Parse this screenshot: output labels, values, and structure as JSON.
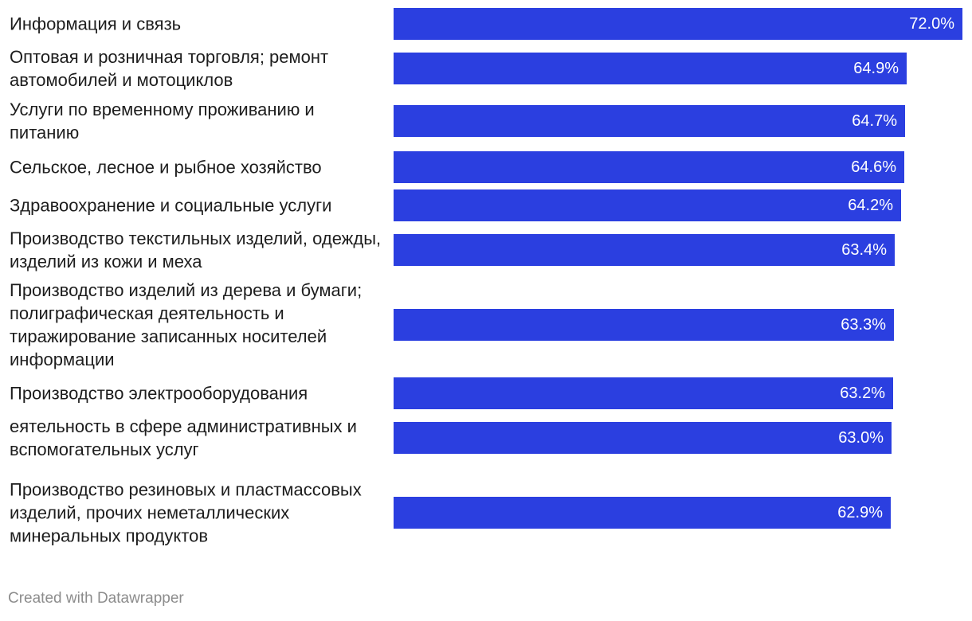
{
  "chart_data": {
    "type": "bar",
    "orientation": "horizontal",
    "categories": [
      "Информация и связь",
      "Оптовая и розничная торговля; ремонт автомобилей и мотоциклов",
      "Услуги по временному проживанию и питанию",
      "Сельское, лесное и рыбное хозяйство",
      "Здравоохранение и социальные услуги",
      "Производство текстильных изделий, одежды, изделий из кожи и меха",
      "Производство изделий из дерева и бумаги; полиграфическая деятельность и тиражирование записанных носителей информации",
      "Производство электрооборудования",
      "еятельность в сфере административных и вспомогательных услуг",
      "Производство резиновых и пластмассовых изделий, прочих неметаллических минеральных продуктов"
    ],
    "values": [
      72.0,
      64.9,
      64.7,
      64.6,
      64.2,
      63.4,
      63.3,
      63.2,
      63.0,
      62.9
    ],
    "value_labels": [
      "72.0%",
      "64.9%",
      "64.7%",
      "64.6%",
      "64.2%",
      "63.4%",
      "63.3%",
      "63.2%",
      "63.0%",
      "62.9%"
    ],
    "xlim": [
      0,
      72.0
    ],
    "bar_color": "#2b3fe0",
    "grid": false,
    "legend": "none"
  },
  "footer": {
    "credit": "Created with Datawrapper"
  }
}
